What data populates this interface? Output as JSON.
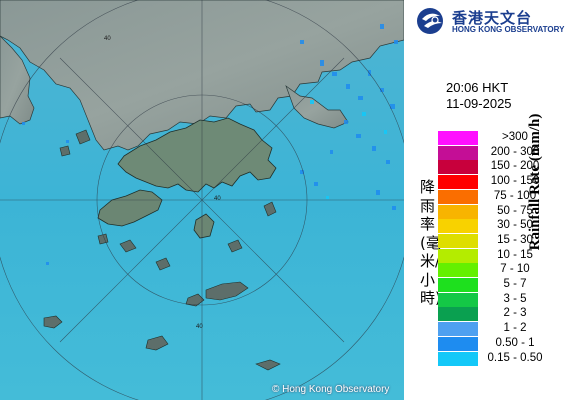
{
  "map": {
    "copyright": "© Hong Kong Observatory",
    "range_ring_labels": [
      "40",
      "40",
      "40"
    ]
  },
  "header": {
    "logo_cn": "香港天文台",
    "logo_en": "HONG KONG OBSERVATORY",
    "time": "20:06 HKT",
    "date": "11-09-2025"
  },
  "legend": {
    "title_en": "Rainfall Rate (mm/h)",
    "title_cn": "降雨率(毫米/小時)",
    "items": [
      {
        "label": ">300",
        "color": "#ff10ff"
      },
      {
        "label": "200 - 300",
        "color": "#c40e96"
      },
      {
        "label": "150 - 200",
        "color": "#c8003c"
      },
      {
        "label": "100 - 150",
        "color": "#ff0000"
      },
      {
        "label": "75 - 100",
        "color": "#fa6e00"
      },
      {
        "label": "50 - 75",
        "color": "#f8b400"
      },
      {
        "label": "30 - 50",
        "color": "#f8d200"
      },
      {
        "label": "15 - 30",
        "color": "#dede00"
      },
      {
        "label": "10 - 15",
        "color": "#b4ec00"
      },
      {
        "label": "7 - 10",
        "color": "#64f000"
      },
      {
        "label": "5 - 7",
        "color": "#1ee01e"
      },
      {
        "label": "3 - 5",
        "color": "#14c846"
      },
      {
        "label": "2 - 3",
        "color": "#0aa050"
      },
      {
        "label": "1 - 2",
        "color": "#4ea0f0"
      },
      {
        "label": "0.50 - 1",
        "color": "#1e8cf0"
      },
      {
        "label": "0.15 - 0.50",
        "color": "#14c8f8"
      }
    ]
  }
}
